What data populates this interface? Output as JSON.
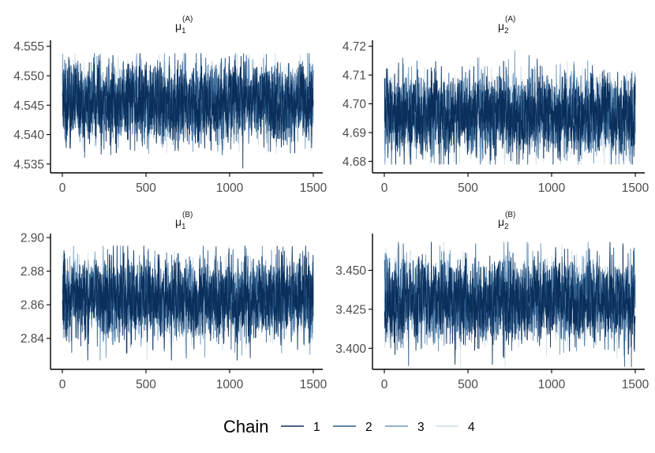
{
  "chart_data": {
    "type": "line",
    "legend": {
      "title": "Chain",
      "position": "bottom",
      "entries": [
        {
          "label": "1",
          "color": "#0b2f5b"
        },
        {
          "label": "2",
          "color": "#2e5d8c"
        },
        {
          "label": "3",
          "color": "#6d98bd"
        },
        {
          "label": "4",
          "color": "#cfdee9"
        }
      ]
    },
    "panels": [
      {
        "title": {
          "base": "μ",
          "sub": "1",
          "sup": "(A)"
        },
        "xlim": [
          0,
          1500
        ],
        "xticks": [
          0,
          500,
          1000,
          1500
        ],
        "xtick_labels": [
          "0",
          "500",
          "1000",
          "1500"
        ],
        "ylim": [
          4.5335,
          4.5555
        ],
        "yticks": [
          4.535,
          4.54,
          4.545,
          4.55,
          4.555
        ],
        "ytick_labels": [
          "4.535",
          "4.540",
          "4.545",
          "4.550",
          "4.555"
        ],
        "center": 4.5455,
        "spread": 0.0031,
        "trace_min": 4.5343,
        "trace_max": 4.5538,
        "series": [
          {
            "name": "1",
            "n_iterations": 1500
          },
          {
            "name": "2",
            "n_iterations": 1500
          },
          {
            "name": "3",
            "n_iterations": 1500
          },
          {
            "name": "4",
            "n_iterations": 1500
          }
        ]
      },
      {
        "title": {
          "base": "μ",
          "sub": "2",
          "sup": "(A)"
        },
        "xlim": [
          0,
          1500
        ],
        "xticks": [
          0,
          500,
          1000,
          1500
        ],
        "xtick_labels": [
          "0",
          "500",
          "1000",
          "1500"
        ],
        "ylim": [
          4.676,
          4.721
        ],
        "yticks": [
          4.68,
          4.69,
          4.7,
          4.71,
          4.72
        ],
        "ytick_labels": [
          "4.68",
          "4.69",
          "4.70",
          "4.71",
          "4.72"
        ],
        "center": 4.6963,
        "spread": 0.0065,
        "trace_min": 4.679,
        "trace_max": 4.7185,
        "series": [
          {
            "name": "1",
            "n_iterations": 1500
          },
          {
            "name": "2",
            "n_iterations": 1500
          },
          {
            "name": "3",
            "n_iterations": 1500
          },
          {
            "name": "4",
            "n_iterations": 1500
          }
        ]
      },
      {
        "title": {
          "base": "μ",
          "sub": "1",
          "sup": "(B)"
        },
        "xlim": [
          0,
          1500
        ],
        "xticks": [
          0,
          500,
          1000,
          1500
        ],
        "xtick_labels": [
          "0",
          "500",
          "1000",
          "1500"
        ],
        "ylim": [
          2.8215,
          2.9005
        ],
        "yticks": [
          2.84,
          2.86,
          2.88,
          2.9
        ],
        "ytick_labels": [
          "2.84",
          "2.86",
          "2.88",
          "2.90"
        ],
        "center": 2.8635,
        "spread": 0.011,
        "trace_min": 2.827,
        "trace_max": 2.895,
        "series": [
          {
            "name": "1",
            "n_iterations": 1500
          },
          {
            "name": "2",
            "n_iterations": 1500
          },
          {
            "name": "3",
            "n_iterations": 1500
          },
          {
            "name": "4",
            "n_iterations": 1500
          }
        ]
      },
      {
        "title": {
          "base": "μ",
          "sub": "2",
          "sup": "(B)"
        },
        "xlim": [
          0,
          1500
        ],
        "xticks": [
          0,
          500,
          1000,
          1500
        ],
        "xtick_labels": [
          "0",
          "500",
          "1000",
          "1500"
        ],
        "ylim": [
          3.3865,
          3.4715
        ],
        "yticks": [
          3.4,
          3.425,
          3.45
        ],
        "ytick_labels": [
          "3.400",
          "3.425",
          "3.450"
        ],
        "center": 3.4305,
        "spread": 0.0125,
        "trace_min": 3.388,
        "trace_max": 3.468,
        "series": [
          {
            "name": "1",
            "n_iterations": 1500
          },
          {
            "name": "2",
            "n_iterations": 1500
          },
          {
            "name": "3",
            "n_iterations": 1500
          },
          {
            "name": "4",
            "n_iterations": 1500
          }
        ]
      }
    ],
    "grid": false
  }
}
